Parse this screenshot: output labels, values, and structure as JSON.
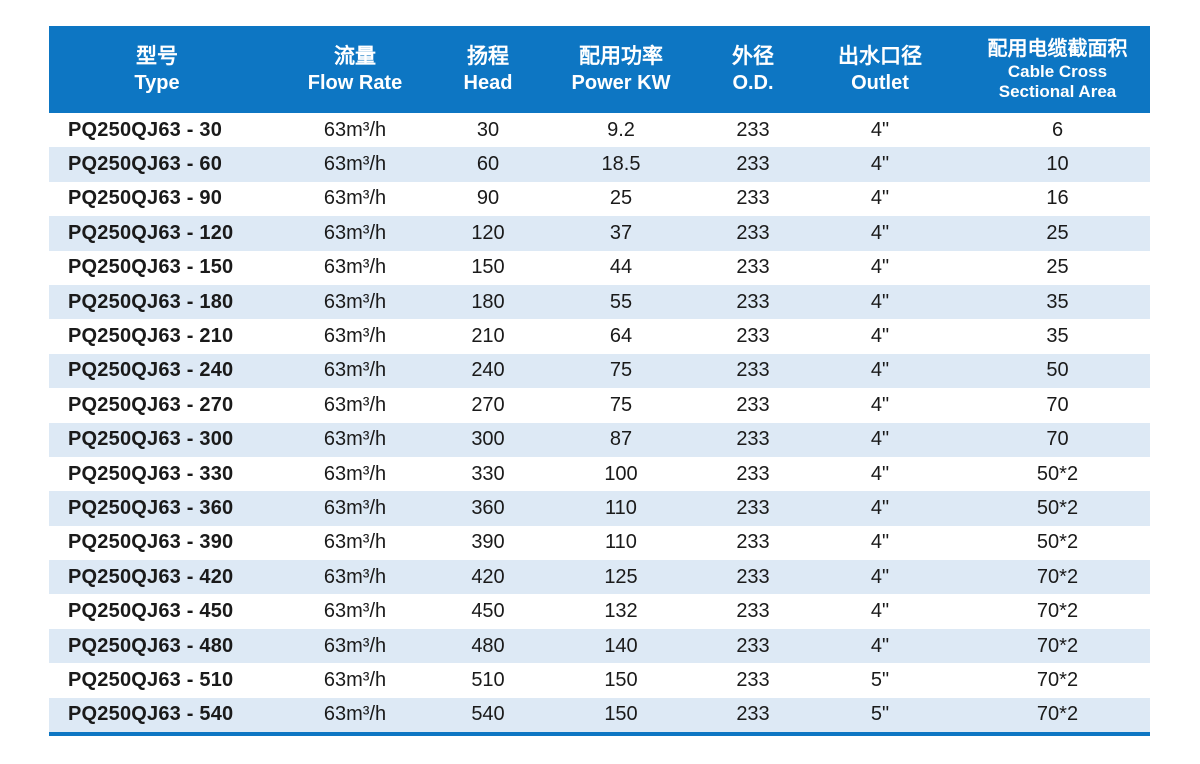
{
  "colors": {
    "header_bg": "#0d76c3",
    "header_text": "#ffffff",
    "stripe_bg": "#dde9f5",
    "row_bg": "#ffffff",
    "text": "#1a1a1a",
    "bottom_rule": "#0d76c3",
    "page_bg": "#ffffff"
  },
  "table": {
    "columns": [
      {
        "key": "type",
        "zh": "型号",
        "en": "Type"
      },
      {
        "key": "flow",
        "zh": "流量",
        "en": "Flow Rate"
      },
      {
        "key": "head",
        "zh": "扬程",
        "en": "Head"
      },
      {
        "key": "power",
        "zh": "配用功率",
        "en": "Power KW"
      },
      {
        "key": "od",
        "zh": "外径",
        "en": "O.D."
      },
      {
        "key": "outlet",
        "zh": "出水口径",
        "en": "Outlet"
      },
      {
        "key": "cable",
        "zh": "配用电缆截面积",
        "en": "Cable Cross",
        "en2": "Sectional Area"
      }
    ],
    "rows": [
      [
        "PQ250QJ63 - 30",
        "63m³/h",
        "30",
        "9.2",
        "233",
        "4\"",
        "6"
      ],
      [
        "PQ250QJ63 - 60",
        "63m³/h",
        "60",
        "18.5",
        "233",
        "4\"",
        "10"
      ],
      [
        "PQ250QJ63 - 90",
        "63m³/h",
        "90",
        "25",
        "233",
        "4\"",
        "16"
      ],
      [
        "PQ250QJ63 - 120",
        "63m³/h",
        "120",
        "37",
        "233",
        "4\"",
        "25"
      ],
      [
        "PQ250QJ63 - 150",
        "63m³/h",
        "150",
        "44",
        "233",
        "4\"",
        "25"
      ],
      [
        "PQ250QJ63 - 180",
        "63m³/h",
        "180",
        "55",
        "233",
        "4\"",
        "35"
      ],
      [
        "PQ250QJ63 - 210",
        "63m³/h",
        "210",
        "64",
        "233",
        "4\"",
        "35"
      ],
      [
        "PQ250QJ63 - 240",
        "63m³/h",
        "240",
        "75",
        "233",
        "4\"",
        "50"
      ],
      [
        "PQ250QJ63 - 270",
        "63m³/h",
        "270",
        "75",
        "233",
        "4\"",
        "70"
      ],
      [
        "PQ250QJ63 - 300",
        "63m³/h",
        "300",
        "87",
        "233",
        "4\"",
        "70"
      ],
      [
        "PQ250QJ63 - 330",
        "63m³/h",
        "330",
        "100",
        "233",
        "4\"",
        "50*2"
      ],
      [
        "PQ250QJ63 - 360",
        "63m³/h",
        "360",
        "110",
        "233",
        "4\"",
        "50*2"
      ],
      [
        "PQ250QJ63 - 390",
        "63m³/h",
        "390",
        "110",
        "233",
        "4\"",
        "50*2"
      ],
      [
        "PQ250QJ63 - 420",
        "63m³/h",
        "420",
        "125",
        "233",
        "4\"",
        "70*2"
      ],
      [
        "PQ250QJ63 - 450",
        "63m³/h",
        "450",
        "132",
        "233",
        "4\"",
        "70*2"
      ],
      [
        "PQ250QJ63 - 480",
        "63m³/h",
        "480",
        "140",
        "233",
        "4\"",
        "70*2"
      ],
      [
        "PQ250QJ63 - 510",
        "63m³/h",
        "510",
        "150",
        "233",
        "5\"",
        "70*2"
      ],
      [
        "PQ250QJ63 - 540",
        "63m³/h",
        "540",
        "150",
        "233",
        "5\"",
        "70*2"
      ]
    ]
  }
}
